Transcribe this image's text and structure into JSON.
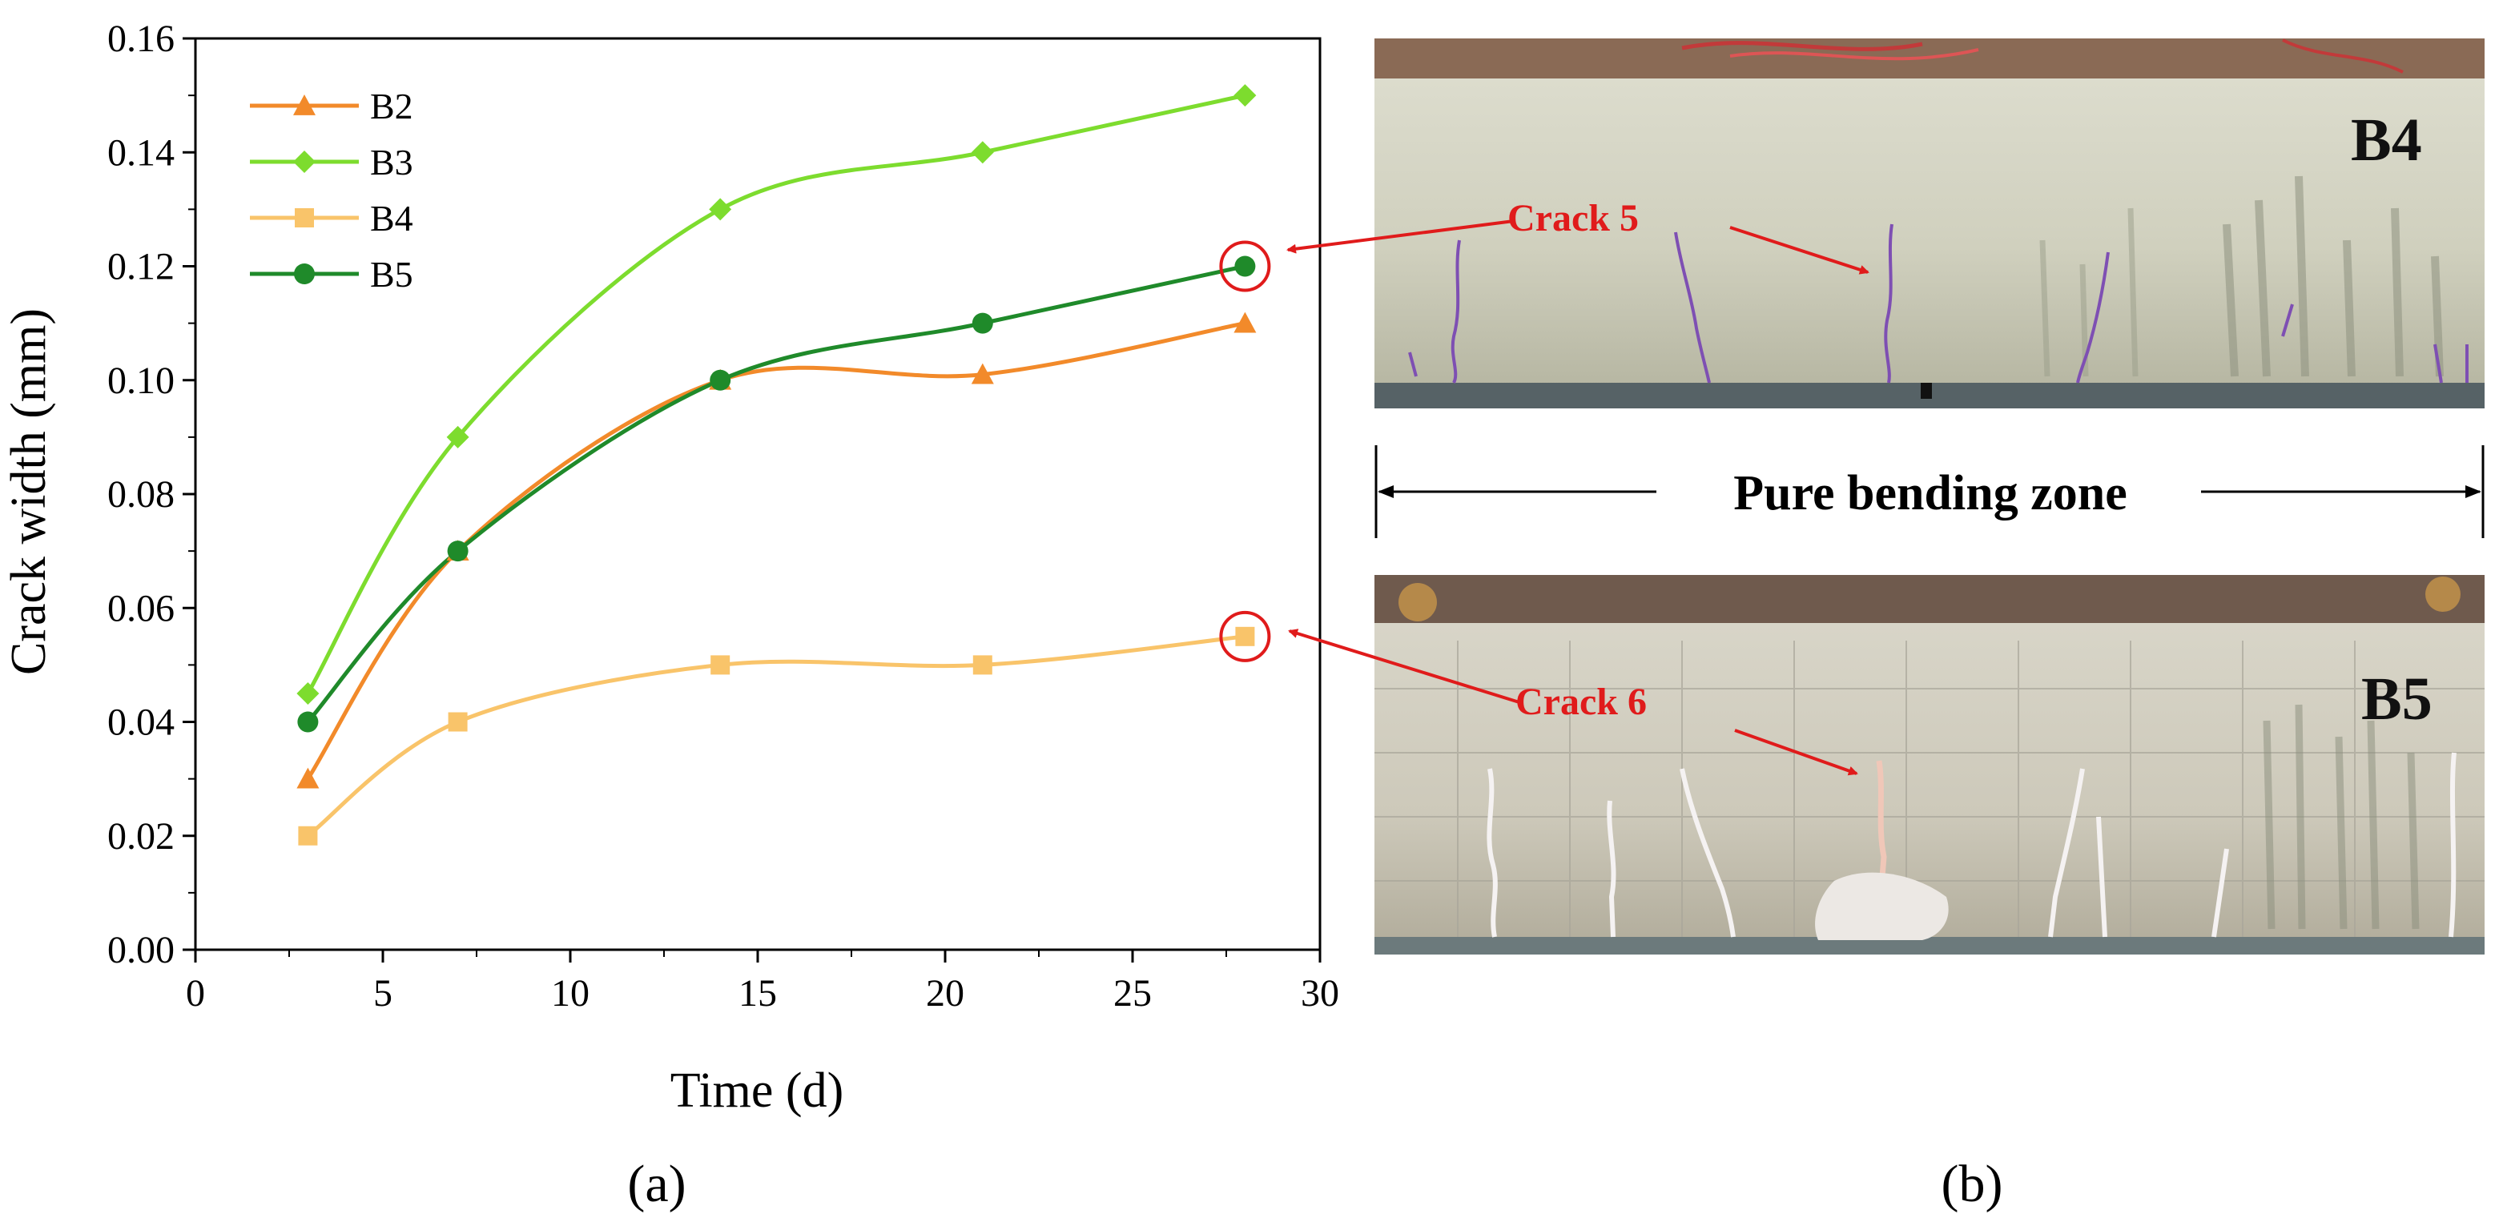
{
  "panel_labels": {
    "a": "(a)",
    "b": "(b)"
  },
  "chart_data": {
    "type": "line",
    "xlabel": "Time (d)",
    "ylabel": "Crack width (mm)",
    "xlim": [
      0,
      30
    ],
    "ylim": [
      0,
      0.16
    ],
    "xticks": [
      "0",
      "5",
      "10",
      "15",
      "20",
      "25",
      "30"
    ],
    "yticks": [
      "0.00",
      "0.02",
      "0.04",
      "0.06",
      "0.08",
      "0.10",
      "0.12",
      "0.14",
      "0.16"
    ],
    "grid": false,
    "legend_position": "top-left",
    "x": [
      3,
      7,
      14,
      21,
      28
    ],
    "series": [
      {
        "name": "B2",
        "marker": "triangle",
        "color": "#f28a2a",
        "values": [
          0.03,
          0.07,
          0.1,
          0.101,
          0.11
        ]
      },
      {
        "name": "B3",
        "marker": "diamond",
        "color": "#7ddc2e",
        "values": [
          0.045,
          0.09,
          0.13,
          0.14,
          0.15
        ]
      },
      {
        "name": "B4",
        "marker": "square",
        "color": "#f9c46a",
        "values": [
          0.02,
          0.04,
          0.05,
          0.05,
          0.055
        ]
      },
      {
        "name": "B5",
        "marker": "circle",
        "color": "#1f8a2a",
        "values": [
          0.04,
          0.07,
          0.1,
          0.11,
          0.12
        ]
      }
    ],
    "highlights": [
      {
        "series": "B5",
        "x": 28,
        "y": 0.12
      },
      {
        "series": "B4",
        "x": 28,
        "y": 0.055
      }
    ],
    "annotation_color": "#e01b1b"
  },
  "photos": {
    "top": {
      "label": "B4",
      "crack_label": "Crack 5"
    },
    "bottom": {
      "label": "B5",
      "crack_label": "Crack 6"
    },
    "zone_label": "Pure bending zone"
  }
}
